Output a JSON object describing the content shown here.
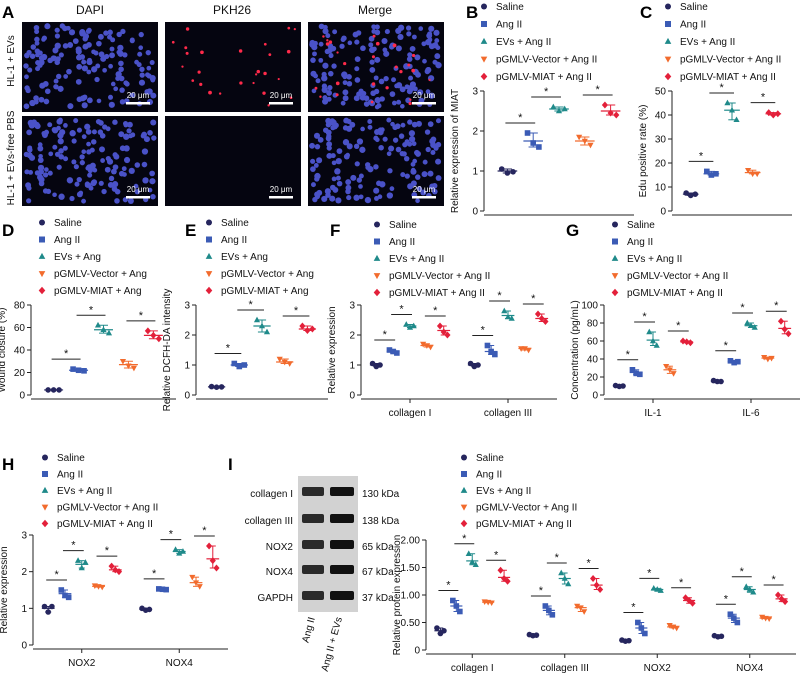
{
  "colors": {
    "Saline": "#26265e",
    "Ang II": "#3b5bb5",
    "EVs + Ang II": "#1f8a8a",
    "pGMLV-Vector + Ang II": "#f26b2d",
    "pGMLV-MIAT + Ang II": "#e3203a"
  },
  "panel_letters": [
    "A",
    "B",
    "C",
    "D",
    "E",
    "F",
    "G",
    "H",
    "I"
  ],
  "panel_a": {
    "column_titles": [
      "DAPI",
      "PKH26",
      "Merge"
    ],
    "row_labels": [
      "HL-1 + EVs",
      "HL-1 + EVs-free PBS"
    ],
    "scale_bar": "20 μm"
  },
  "panel_i_blot": {
    "bands": [
      {
        "name": "collagen I",
        "kda": "130 kDa"
      },
      {
        "name": "collagen III",
        "kda": "138 kDa"
      },
      {
        "name": "NOX2",
        "kda": "65 kDa"
      },
      {
        "name": "NOX4",
        "kda": "67 kDa"
      },
      {
        "name": "GAPDH",
        "kda": "37 kDa"
      }
    ],
    "lanes": [
      "Ang II",
      "Ang II + EVs"
    ]
  },
  "chart_data": [
    {
      "panel": "B",
      "type": "scatter",
      "ylabel": "Relative expression of MIAT",
      "ylim": [
        0,
        3
      ],
      "yticks": [
        0,
        1,
        2,
        3
      ],
      "legend": [
        "Saline",
        "Ang II",
        "EVs + Ang II",
        "pGMLV-Vector + Ang II",
        "pGMLV-MIAT + Ang II"
      ],
      "categories": [
        ""
      ],
      "series": [
        {
          "name": "Saline",
          "values": [
            1.0
          ],
          "points": [
            [
              1.05,
              0.95,
              0.98
            ]
          ]
        },
        {
          "name": "Ang II",
          "values": [
            1.75
          ],
          "points": [
            [
              1.95,
              1.7,
              1.6
            ]
          ]
        },
        {
          "name": "EVs + Ang II",
          "values": [
            2.55
          ],
          "points": [
            [
              2.6,
              2.5,
              2.55
            ]
          ]
        },
        {
          "name": "pGMLV-Vector + Ang II",
          "values": [
            1.75
          ],
          "points": [
            [
              1.85,
              1.75,
              1.65
            ]
          ]
        },
        {
          "name": "pGMLV-MIAT + Ang II",
          "values": [
            2.5
          ],
          "points": [
            [
              2.65,
              2.45,
              2.4
            ]
          ]
        }
      ],
      "sig": [
        [
          0,
          1
        ],
        [
          1,
          2
        ],
        [
          3,
          4
        ]
      ],
      "sig_label": "*"
    },
    {
      "panel": "C",
      "type": "scatter",
      "ylabel": "Edu positive rate (%)",
      "ylim": [
        0,
        50
      ],
      "yticks": [
        0,
        10,
        20,
        30,
        40,
        50
      ],
      "legend": [
        "Saline",
        "Ang II",
        "EVs + Ang II",
        "pGMLV-Vector + Ang II",
        "pGMLV-MIAT + Ang II"
      ],
      "categories": [
        ""
      ],
      "series": [
        {
          "name": "Saline",
          "values": [
            7
          ],
          "points": [
            [
              7.5,
              6.5,
              7
            ]
          ]
        },
        {
          "name": "Ang II",
          "values": [
            15.5
          ],
          "points": [
            [
              16.5,
              15,
              15.5
            ]
          ]
        },
        {
          "name": "EVs + Ang II",
          "values": [
            42
          ],
          "points": [
            [
              45,
              42,
              38
            ]
          ]
        },
        {
          "name": "pGMLV-Vector + Ang II",
          "values": [
            16
          ],
          "points": [
            [
              17,
              15.5,
              15.5
            ]
          ]
        },
        {
          "name": "pGMLV-MIAT + Ang II",
          "values": [
            40.5
          ],
          "points": [
            [
              41,
              40,
              40.5
            ]
          ]
        }
      ],
      "sig": [
        [
          0,
          1
        ],
        [
          1,
          2
        ],
        [
          3,
          4
        ]
      ],
      "sig_label": "*"
    },
    {
      "panel": "D",
      "type": "scatter",
      "ylabel": "Wound closure (%)",
      "ylim": [
        0,
        80
      ],
      "yticks": [
        0,
        20,
        40,
        60,
        80
      ],
      "legend": [
        "Saline",
        "Ang II",
        "EVs + Ang",
        "pGMLV-Vector + Ang",
        "pGMLV-MIAT + Ang"
      ],
      "categories": [
        ""
      ],
      "series": [
        {
          "name": "Saline",
          "values": [
            4.5
          ],
          "points": [
            [
              4.5,
              4.5,
              4.5
            ]
          ]
        },
        {
          "name": "Ang II",
          "values": [
            22
          ],
          "points": [
            [
              23,
              22,
              21.5
            ]
          ]
        },
        {
          "name": "EVs + Ang II",
          "values": [
            58
          ],
          "points": [
            [
              62,
              58,
              55
            ]
          ]
        },
        {
          "name": "pGMLV-Vector + Ang II",
          "values": [
            27
          ],
          "points": [
            [
              30,
              26,
              24
            ]
          ]
        },
        {
          "name": "pGMLV-MIAT + Ang II",
          "values": [
            53
          ],
          "points": [
            [
              57,
              53,
              50
            ]
          ]
        }
      ],
      "sig": [
        [
          0,
          1
        ],
        [
          1,
          2
        ],
        [
          3,
          4
        ]
      ],
      "sig_label": "*"
    },
    {
      "panel": "E",
      "type": "scatter",
      "ylabel": "Relative DCFH-DA intensity",
      "ylim": [
        0,
        3
      ],
      "yticks": [
        0,
        1,
        2,
        3
      ],
      "legend": [
        "Saline",
        "Ang II",
        "EVs + Ang",
        "pGMLV-Vector + Ang",
        "pGMLV-MIAT + Ang"
      ],
      "categories": [
        ""
      ],
      "series": [
        {
          "name": "Saline",
          "values": [
            0.27
          ],
          "points": [
            [
              0.28,
              0.26,
              0.27
            ]
          ]
        },
        {
          "name": "Ang II",
          "values": [
            1.0
          ],
          "points": [
            [
              1.05,
              0.95,
              1.0
            ]
          ]
        },
        {
          "name": "EVs + Ang II",
          "values": [
            2.3
          ],
          "points": [
            [
              2.5,
              2.3,
              2.1
            ]
          ]
        },
        {
          "name": "pGMLV-Vector + Ang II",
          "values": [
            1.1
          ],
          "points": [
            [
              1.2,
              1.1,
              1.05
            ]
          ]
        },
        {
          "name": "pGMLV-MIAT + Ang II",
          "values": [
            2.2
          ],
          "points": [
            [
              2.3,
              2.15,
              2.2
            ]
          ]
        }
      ],
      "sig": [
        [
          0,
          1
        ],
        [
          1,
          2
        ],
        [
          3,
          4
        ]
      ],
      "sig_label": "*"
    },
    {
      "panel": "F",
      "type": "scatter",
      "ylabel": "Relative expression",
      "ylim": [
        0,
        3
      ],
      "yticks": [
        0,
        1,
        2,
        3
      ],
      "legend": [
        "Saline",
        "Ang II",
        "EVs + Ang II",
        "pGMLV-Vector + Ang II",
        "pGMLV-MIAT + Ang II"
      ],
      "categories": [
        "collagen I",
        "collagen III"
      ],
      "series": [
        {
          "name": "Saline",
          "values": [
            1.0,
            1.0
          ],
          "points": [
            [
              1.05,
              0.95,
              1.0
            ],
            [
              1.05,
              0.95,
              1.0
            ]
          ]
        },
        {
          "name": "Ang II",
          "values": [
            1.45,
            1.45
          ],
          "points": [
            [
              1.5,
              1.45,
              1.4
            ],
            [
              1.65,
              1.45,
              1.35
            ]
          ]
        },
        {
          "name": "EVs + Ang II",
          "values": [
            2.3,
            2.65
          ],
          "points": [
            [
              2.35,
              2.25,
              2.3
            ],
            [
              2.8,
              2.6,
              2.55
            ]
          ]
        },
        {
          "name": "pGMLV-Vector + Ang II",
          "values": [
            1.65,
            1.55
          ],
          "points": [
            [
              1.7,
              1.65,
              1.6
            ],
            [
              1.55,
              1.55,
              1.5
            ]
          ]
        },
        {
          "name": "pGMLV-MIAT + Ang II",
          "values": [
            2.15,
            2.55
          ],
          "points": [
            [
              2.3,
              2.1,
              2.0
            ],
            [
              2.7,
              2.55,
              2.45
            ]
          ]
        }
      ],
      "sig": [
        [
          0,
          1
        ],
        [
          1,
          2
        ],
        [
          3,
          4
        ]
      ],
      "sig_label": "*"
    },
    {
      "panel": "G",
      "type": "scatter",
      "ylabel": "Concentration (pg/mL)",
      "ylim": [
        0,
        100
      ],
      "yticks": [
        0,
        20,
        40,
        60,
        80,
        100
      ],
      "legend": [
        "Saline",
        "Ang II",
        "EVs + Ang II",
        "pGMLV-Vector + Ang II",
        "pGMLV-MIAT + Ang II"
      ],
      "categories": [
        "IL-1",
        "IL-6"
      ],
      "series": [
        {
          "name": "Saline",
          "values": [
            10,
            15
          ],
          "points": [
            [
              10.5,
              9.5,
              10
            ],
            [
              16,
              15,
              15
            ]
          ]
        },
        {
          "name": "Ang II",
          "values": [
            25,
            37
          ],
          "points": [
            [
              28,
              24,
              23
            ],
            [
              38,
              36,
              37
            ]
          ]
        },
        {
          "name": "EVs + Ang II",
          "values": [
            61,
            77
          ],
          "points": [
            [
              70,
              60,
              55
            ],
            [
              80,
              77,
              75
            ]
          ]
        },
        {
          "name": "pGMLV-Vector + Ang II",
          "values": [
            28,
            41
          ],
          "points": [
            [
              32,
              28,
              24
            ],
            [
              42,
              40,
              41
            ]
          ]
        },
        {
          "name": "pGMLV-MIAT + Ang II",
          "values": [
            59,
            74
          ],
          "points": [
            [
              60,
              59,
              58
            ],
            [
              82,
              73,
              68
            ]
          ]
        }
      ],
      "sig": [
        [
          0,
          1
        ],
        [
          1,
          2
        ],
        [
          3,
          4
        ]
      ],
      "sig_label": "*"
    },
    {
      "panel": "H",
      "type": "scatter",
      "ylabel": "Relative expression",
      "ylim": [
        0,
        3
      ],
      "yticks": [
        0,
        1,
        2,
        3
      ],
      "legend": [
        "Saline",
        "Ang II",
        "EVs + Ang II",
        "pGMLV-Vector + Ang II",
        "pGMLV-MIAT + Ang II"
      ],
      "categories": [
        "NOX2",
        "NOX4"
      ],
      "series": [
        {
          "name": "Saline",
          "values": [
            1.0,
            0.97
          ],
          "points": [
            [
              1.05,
              0.9,
              1.05
            ],
            [
              1.0,
              0.95,
              0.97
            ]
          ]
        },
        {
          "name": "Ang II",
          "values": [
            1.4,
            1.52
          ],
          "points": [
            [
              1.5,
              1.35,
              1.3
            ],
            [
              1.53,
              1.52,
              1.51
            ]
          ]
        },
        {
          "name": "EVs + Ang II",
          "values": [
            2.2,
            2.55
          ],
          "points": [
            [
              2.3,
              2.1,
              2.25
            ],
            [
              2.6,
              2.5,
              2.55
            ]
          ]
        },
        {
          "name": "pGMLV-Vector + Ang II",
          "values": [
            1.6,
            1.7
          ],
          "points": [
            [
              1.62,
              1.6,
              1.58
            ],
            [
              1.85,
              1.7,
              1.6
            ]
          ]
        },
        {
          "name": "pGMLV-MIAT + Ang II",
          "values": [
            2.05,
            2.35
          ],
          "points": [
            [
              2.15,
              2.05,
              2.0
            ],
            [
              2.7,
              2.3,
              2.1
            ]
          ]
        }
      ],
      "sig": [
        [
          0,
          1
        ],
        [
          1,
          2
        ],
        [
          3,
          4
        ]
      ],
      "sig_label": "*"
    },
    {
      "panel": "I",
      "type": "scatter",
      "ylabel": "Relative protein expression",
      "ylim": [
        0,
        2
      ],
      "yticks": [
        0,
        0.5,
        1.0,
        1.5,
        2.0
      ],
      "ytick_labels": [
        "0",
        "0.50",
        "1.00",
        "1.50",
        "2.00"
      ],
      "legend": [
        "Saline",
        "Ang II",
        "EVs + Ang II",
        "pGMLV-Vector + Ang II",
        "pGMLV-MIAT + Ang II"
      ],
      "categories": [
        "collagen I",
        "collagen III",
        "NOX2",
        "NOX4"
      ],
      "series": [
        {
          "name": "Saline",
          "values": [
            0.35,
            0.27,
            0.17,
            0.25
          ],
          "points": [
            [
              0.4,
              0.3,
              0.35
            ],
            [
              0.28,
              0.26,
              0.27
            ],
            [
              0.18,
              0.16,
              0.17
            ],
            [
              0.26,
              0.24,
              0.25
            ]
          ]
        },
        {
          "name": "Ang II",
          "values": [
            0.8,
            0.72,
            0.4,
            0.58
          ],
          "points": [
            [
              0.9,
              0.8,
              0.7
            ],
            [
              0.8,
              0.72,
              0.64
            ],
            [
              0.5,
              0.4,
              0.3
            ],
            [
              0.65,
              0.58,
              0.5
            ]
          ]
        },
        {
          "name": "EVs + Ang II",
          "values": [
            1.62,
            1.3,
            1.1,
            1.1
          ],
          "points": [
            [
              1.75,
              1.6,
              1.55
            ],
            [
              1.4,
              1.3,
              1.2
            ],
            [
              1.12,
              1.1,
              1.08
            ],
            [
              1.15,
              1.1,
              1.05
            ]
          ]
        },
        {
          "name": "pGMLV-Vector + Ang II",
          "values": [
            0.87,
            0.77,
            0.42,
            0.58
          ],
          "points": [
            [
              0.88,
              0.87,
              0.86
            ],
            [
              0.8,
              0.77,
              0.7
            ],
            [
              0.45,
              0.42,
              0.4
            ],
            [
              0.6,
              0.58,
              0.57
            ]
          ]
        },
        {
          "name": "pGMLV-MIAT + Ang II",
          "values": [
            1.32,
            1.18,
            0.9,
            0.93
          ],
          "points": [
            [
              1.45,
              1.3,
              1.25
            ],
            [
              1.3,
              1.18,
              1.1
            ],
            [
              0.95,
              0.9,
              0.85
            ],
            [
              1.0,
              0.93,
              0.88
            ]
          ]
        }
      ],
      "sig": [
        [
          0,
          1
        ],
        [
          1,
          2
        ],
        [
          3,
          4
        ]
      ],
      "sig_label": "*"
    }
  ]
}
